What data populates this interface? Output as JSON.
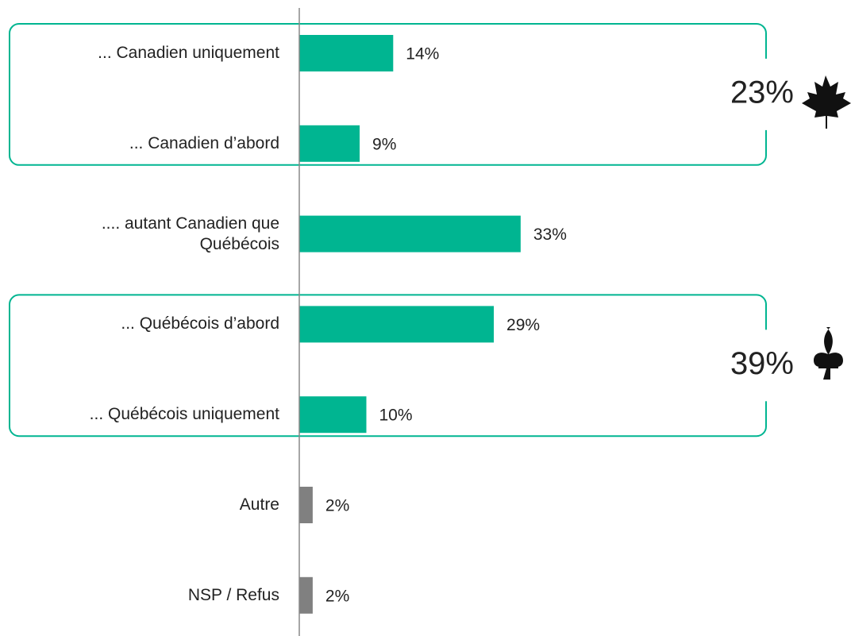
{
  "chart_data": {
    "type": "bar",
    "orientation": "horizontal",
    "categories": [
      "... Canadien uniquement",
      "... Canadien d’abord",
      ".... autant Canadien que Québécois",
      "... Québécois d’abord",
      "... Québécois uniquement",
      "Autre",
      "NSP / Refus"
    ],
    "values": [
      14,
      9,
      33,
      29,
      10,
      2,
      2
    ],
    "value_labels": [
      "14%",
      "9%",
      "33%",
      "29%",
      "10%",
      "2%",
      "2%"
    ],
    "colors": [
      "#00b591",
      "#00b591",
      "#00b591",
      "#00b591",
      "#00b591",
      "#808080",
      "#808080"
    ],
    "xlim": [
      0,
      100
    ],
    "annotations": [
      "23%",
      "39%"
    ]
  }
}
